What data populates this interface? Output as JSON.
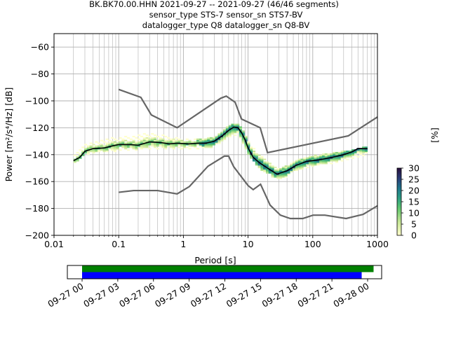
{
  "title_lines": [
    "BK.BK70.00.HHN   2021-09-27 -- 2021-09-27  (46/46 segments)",
    "sensor_type STS-7 sensor_sn STS7-BV",
    "datalogger_type Q8 datalogger_sn Q8-BV"
  ],
  "chart_data": [
    {
      "type": "heatmap",
      "xscale": "log",
      "xlim": [
        0.01,
        1000
      ],
      "ylim": [
        -200,
        -50
      ],
      "grid": true,
      "xlabel": "Period [s]",
      "ylabel": "Power [m²/s⁴/Hz] [dB]",
      "x_ticks": [
        0.01,
        0.1,
        1,
        10,
        100,
        1000
      ],
      "x_tick_labels": [
        "0.01",
        "0.1",
        "1",
        "10",
        "100",
        "1000"
      ],
      "y_ticks": [
        -200,
        -180,
        -160,
        -140,
        -120,
        -100,
        -80,
        -60
      ],
      "y_tick_labels": [
        "−200",
        "−180",
        "−160",
        "−140",
        "−120",
        "−100",
        "−80",
        "−60"
      ],
      "colorbar": {
        "label": "[%]",
        "min": 0,
        "max": 30,
        "ticks": [
          0,
          5,
          10,
          15,
          20,
          25,
          30
        ],
        "tick_labels": [
          "0",
          "5",
          "10",
          "15",
          "20",
          "25",
          "30"
        ]
      },
      "nhnm": [
        [
          0.1,
          -91.5
        ],
        [
          0.22,
          -97.4
        ],
        [
          0.32,
          -110.5
        ],
        [
          0.8,
          -120
        ],
        [
          3.8,
          -98
        ],
        [
          4.6,
          -96.5
        ],
        [
          6.3,
          -101
        ],
        [
          7.9,
          -113.5
        ],
        [
          15.4,
          -120
        ],
        [
          20,
          -138.5
        ],
        [
          354.8,
          -126
        ],
        [
          1000,
          -112
        ]
      ],
      "nlnm": [
        [
          0.1,
          -168
        ],
        [
          0.17,
          -166.7
        ],
        [
          0.4,
          -166.7
        ],
        [
          0.8,
          -169.2
        ],
        [
          1.24,
          -163.7
        ],
        [
          2.4,
          -148.6
        ],
        [
          4.3,
          -141.1
        ],
        [
          5,
          -141.1
        ],
        [
          6,
          -149
        ],
        [
          10,
          -163
        ],
        [
          12,
          -166
        ],
        [
          15.6,
          -162
        ],
        [
          21.9,
          -177.5
        ],
        [
          31.6,
          -185
        ],
        [
          45,
          -187.5
        ],
        [
          70,
          -187.5
        ],
        [
          101,
          -185
        ],
        [
          154,
          -185
        ],
        [
          328,
          -187.5
        ],
        [
          600,
          -184.4
        ],
        [
          1000,
          -178
        ]
      ],
      "mode_curve": [
        [
          0.02,
          -144.5
        ],
        [
          0.025,
          -142
        ],
        [
          0.03,
          -137.5
        ],
        [
          0.04,
          -135.5
        ],
        [
          0.06,
          -135
        ],
        [
          0.08,
          -133.5
        ],
        [
          0.1,
          -132.5
        ],
        [
          0.15,
          -132.5
        ],
        [
          0.2,
          -133
        ],
        [
          0.3,
          -130.5
        ],
        [
          0.45,
          -131
        ],
        [
          0.6,
          -132
        ],
        [
          0.8,
          -131.5
        ],
        [
          1.2,
          -132
        ],
        [
          1.7,
          -131.5
        ],
        [
          2.2,
          -131.5
        ],
        [
          3,
          -130
        ],
        [
          4,
          -126
        ],
        [
          5,
          -122
        ],
        [
          6,
          -119.5
        ],
        [
          7,
          -120
        ],
        [
          8,
          -124
        ],
        [
          9,
          -129
        ],
        [
          10,
          -135
        ],
        [
          12,
          -142
        ],
        [
          15,
          -146
        ],
        [
          20,
          -150
        ],
        [
          28,
          -154.5
        ],
        [
          40,
          -152
        ],
        [
          55,
          -148
        ],
        [
          80,
          -145
        ],
        [
          120,
          -144
        ],
        [
          200,
          -142
        ],
        [
          300,
          -140
        ],
        [
          400,
          -138
        ],
        [
          500,
          -135.5
        ],
        [
          700,
          -135.5
        ]
      ],
      "density_band": [
        [
          0.02,
          -146,
          -141
        ],
        [
          0.03,
          -141,
          -132
        ],
        [
          0.05,
          -138,
          -130
        ],
        [
          0.1,
          -137,
          -127
        ],
        [
          0.2,
          -136,
          -126
        ],
        [
          0.3,
          -135,
          -124
        ],
        [
          0.5,
          -136,
          -126
        ],
        [
          1,
          -136,
          -128
        ],
        [
          2,
          -135,
          -128
        ],
        [
          3,
          -134,
          -127
        ],
        [
          4,
          -130,
          -122
        ],
        [
          5,
          -127,
          -119
        ],
        [
          6,
          -125,
          -117
        ],
        [
          7,
          -126,
          -118
        ],
        [
          8,
          -130,
          -121
        ],
        [
          10,
          -139,
          -129
        ],
        [
          15,
          -150,
          -140
        ],
        [
          20,
          -154,
          -145
        ],
        [
          28,
          -158,
          -151
        ],
        [
          40,
          -156,
          -148
        ],
        [
          60,
          -151,
          -144
        ],
        [
          100,
          -148,
          -141
        ],
        [
          200,
          -146,
          -139
        ],
        [
          400,
          -143,
          -137
        ],
        [
          700,
          -140,
          -134
        ]
      ]
    },
    {
      "type": "timeline",
      "xlim": [
        "2021-09-27 00:00",
        "2021-09-28 00:00"
      ],
      "x_ticks": [
        "2021-09-27 00:00",
        "2021-09-27 03:00",
        "2021-09-27 06:00",
        "2021-09-27 09:00",
        "2021-09-27 12:00",
        "2021-09-27 15:00",
        "2021-09-27 18:00",
        "2021-09-27 21:00",
        "2021-09-28 00:00"
      ],
      "x_tick_labels": [
        "09-27 00",
        "09-27 03",
        "09-27 06",
        "09-27 09",
        "09-27 12",
        "09-27 15",
        "09-27 18",
        "09-27 21",
        "09-28 00"
      ],
      "series": [
        {
          "color": "#008000",
          "start": "2021-09-27 00:00",
          "end": "2021-09-28 00:30"
        },
        {
          "color": "#0000ff",
          "start": "2021-09-27 00:00",
          "end": "2021-09-27 23:30"
        }
      ]
    }
  ]
}
